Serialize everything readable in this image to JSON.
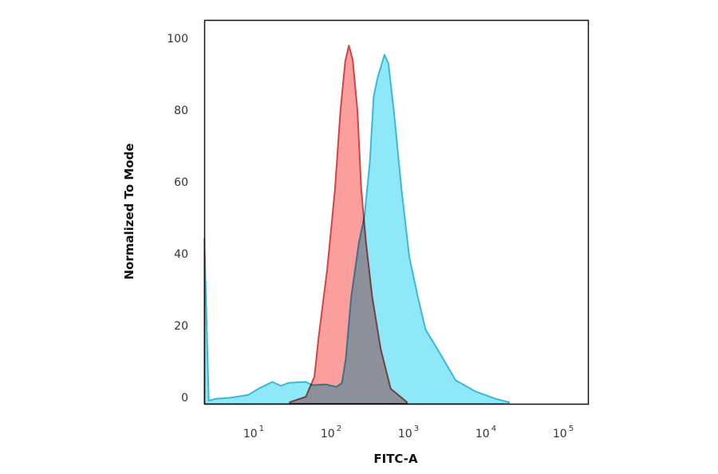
{
  "chart_data": {
    "type": "area",
    "xlabel": "FITC-A",
    "ylabel": "Normalized To Mode",
    "xscale": "log",
    "xlim": [
      2.2,
      200000
    ],
    "ylim": [
      0,
      105
    ],
    "grid": false,
    "legend": "none",
    "x_ticks": [
      {
        "base": "10",
        "exp": "1",
        "value": 10
      },
      {
        "base": "10",
        "exp": "2",
        "value": 100
      },
      {
        "base": "10",
        "exp": "3",
        "value": 1000
      },
      {
        "base": "10",
        "exp": "4",
        "value": 10000
      },
      {
        "base": "10",
        "exp": "5",
        "value": 100000
      }
    ],
    "y_ticks": [
      "0",
      "20",
      "40",
      "60",
      "80",
      "100"
    ],
    "series": [
      {
        "color_fill": "#8ee8f8",
        "color_line": "#3bb8d8",
        "x": [
          2.2,
          2.5,
          3.0,
          4.7,
          8.1,
          11.2,
          16.6,
          21.4,
          26.9,
          44.7,
          55,
          81,
          112,
          132,
          148,
          174,
          219,
          257,
          302,
          339,
          380,
          468,
          525,
          617,
          776,
          977,
          1259,
          1585,
          2344,
          3890,
          6918,
          12880,
          19050
        ],
        "y": [
          45,
          0.4,
          0.9,
          1.2,
          2,
          3.8,
          5.6,
          4.5,
          5.3,
          5.6,
          4.7,
          4.9,
          4.2,
          5.3,
          12,
          29,
          44,
          51,
          66,
          84,
          89,
          95.5,
          93,
          80,
          58.5,
          40,
          29,
          20,
          14,
          6,
          3,
          0.9,
          0
        ]
      },
      {
        "color_fill": "#fa9e9e",
        "color_line": "#d04545",
        "x": [
          28,
          45,
          58,
          66,
          85,
          107,
          126,
          145,
          162,
          182,
          209,
          234,
          269,
          324,
          417,
          562,
          912
        ],
        "y": [
          0,
          1.5,
          7,
          18,
          36.6,
          58.5,
          80,
          93.6,
          98,
          94,
          80,
          58.5,
          44,
          29,
          14.6,
          3.7,
          0
        ]
      }
    ]
  }
}
